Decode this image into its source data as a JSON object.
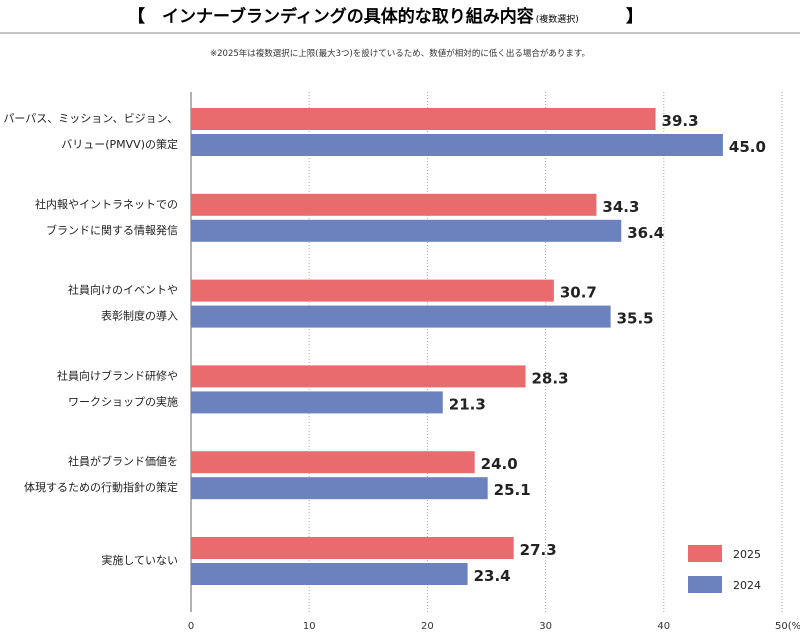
{
  "chart_data": {
    "type": "bar",
    "orientation": "horizontal",
    "title": "【　インナーブランディングの具体的な取り組み内容",
    "title_suffix": "(複数選択)",
    "title_close": "】",
    "note": "※2025年は複数選択に上限(最大3つ)を設けているため、数値が相対的に低く出る場合があります。",
    "categories": [
      [
        "パーパス、ミッション、ビジョン、",
        "バリュー(PMVV)の策定"
      ],
      [
        "社内報やイントラネットでの",
        "ブランドに関する情報発信"
      ],
      [
        "社員向けのイベントや",
        "表彰制度の導入"
      ],
      [
        "社員向けブランド研修や",
        "ワークショップの実施"
      ],
      [
        "社員がブランド価値を",
        "体現するための行動指針の策定"
      ],
      [
        "実施していない"
      ]
    ],
    "series": [
      {
        "name": "2025",
        "color": "#e96b6e",
        "values": [
          39.3,
          34.3,
          30.7,
          28.3,
          24.0,
          27.3
        ]
      },
      {
        "name": "2024",
        "color": "#6b82bf",
        "values": [
          45.0,
          36.4,
          35.5,
          21.3,
          25.1,
          23.4
        ]
      }
    ],
    "xlim": [
      0,
      50
    ],
    "xticks": [
      "0",
      "10",
      "20",
      "30",
      "40",
      "50(%)"
    ],
    "grid": "vertical dotted",
    "legend": "bottom-right",
    "data_labels": true
  }
}
